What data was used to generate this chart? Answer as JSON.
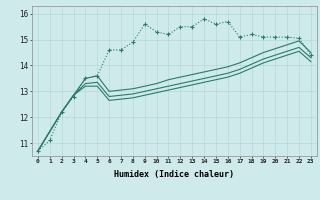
{
  "xlabel": "Humidex (Indice chaleur)",
  "bg_color": "#ceeaea",
  "grid_color": "#b8d8d8",
  "line_color": "#2a7a6a",
  "xlim": [
    -0.5,
    23.5
  ],
  "ylim": [
    10.5,
    16.3
  ],
  "yticks": [
    11,
    12,
    13,
    14,
    15,
    16
  ],
  "xticks": [
    0,
    1,
    2,
    3,
    4,
    5,
    6,
    7,
    8,
    9,
    10,
    11,
    12,
    13,
    14,
    15,
    16,
    17,
    18,
    19,
    20,
    21,
    22,
    23
  ],
  "line_dotted_x": [
    0,
    1,
    2,
    3,
    4,
    5,
    6,
    7,
    8,
    9,
    10,
    11,
    12,
    13,
    14,
    15,
    16,
    17,
    18,
    19,
    20,
    21,
    22,
    23
  ],
  "line_dotted_y": [
    10.7,
    11.1,
    12.2,
    12.8,
    13.5,
    13.6,
    14.6,
    14.6,
    14.9,
    15.6,
    15.3,
    15.2,
    15.5,
    15.5,
    15.8,
    15.6,
    15.7,
    15.1,
    15.2,
    15.1,
    15.1,
    15.1,
    15.05,
    14.4
  ],
  "line1_x": [
    0,
    2,
    3,
    4,
    5,
    6,
    7,
    8,
    9,
    10,
    11,
    12,
    13,
    14,
    15,
    16,
    17,
    18,
    19,
    20,
    21,
    22,
    23
  ],
  "line1_y": [
    10.7,
    12.2,
    12.85,
    13.5,
    13.6,
    13.0,
    13.05,
    13.1,
    13.2,
    13.3,
    13.45,
    13.55,
    13.65,
    13.75,
    13.85,
    13.95,
    14.1,
    14.3,
    14.5,
    14.65,
    14.8,
    14.95,
    14.5
  ],
  "line2_x": [
    0,
    2,
    3,
    4,
    5,
    6,
    7,
    8,
    9,
    10,
    11,
    12,
    13,
    14,
    15,
    16,
    17,
    18,
    19,
    20,
    21,
    22,
    23
  ],
  "line2_y": [
    10.7,
    12.2,
    12.85,
    13.3,
    13.35,
    12.8,
    12.85,
    12.9,
    13.0,
    13.1,
    13.2,
    13.3,
    13.4,
    13.5,
    13.6,
    13.7,
    13.85,
    14.05,
    14.25,
    14.4,
    14.55,
    14.7,
    14.3
  ],
  "line3_x": [
    0,
    2,
    3,
    4,
    5,
    6,
    7,
    8,
    9,
    10,
    11,
    12,
    13,
    14,
    15,
    16,
    17,
    18,
    19,
    20,
    21,
    22,
    23
  ],
  "line3_y": [
    10.7,
    12.2,
    12.85,
    13.2,
    13.2,
    12.65,
    12.7,
    12.75,
    12.85,
    12.95,
    13.05,
    13.15,
    13.25,
    13.35,
    13.45,
    13.55,
    13.7,
    13.9,
    14.1,
    14.25,
    14.4,
    14.55,
    14.15
  ]
}
